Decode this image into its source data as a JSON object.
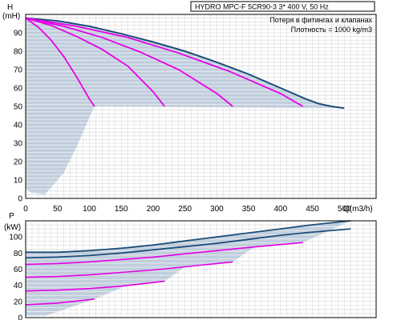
{
  "chart_data": [
    {
      "type": "line",
      "title": "HYDRO MPC-F 5CR90-3   3* 400 V, 50 Hz",
      "notes": [
        "Потеря в фитингах и клапанах",
        "Плотность = 1000 kg/m3"
      ],
      "ylabel": "H",
      "yunit": "(mH)",
      "xlabel": "Q(m3/h)",
      "xlim": [
        0,
        550
      ],
      "ylim": [
        0,
        100
      ],
      "xticks": [
        0,
        50,
        100,
        150,
        200,
        250,
        300,
        350,
        400,
        450,
        500
      ],
      "yticks": [
        0,
        10,
        20,
        30,
        40,
        50,
        60,
        70,
        80,
        90
      ],
      "grid": true,
      "colors": {
        "max": "#1f4e79",
        "pump": "#e600e6",
        "area": "#b8c8d8"
      },
      "series": [
        {
          "x": [
            0,
            50,
            100,
            150,
            200,
            250,
            300,
            350,
            400,
            440,
            460,
            480,
            500
          ],
          "y": [
            98,
            96.5,
            93.5,
            89.5,
            85,
            80,
            74,
            67.5,
            60,
            54,
            51.5,
            50,
            49
          ]
        },
        {
          "x": [
            0,
            20,
            40,
            60,
            80,
            100,
            108
          ],
          "y": [
            98,
            93,
            86,
            77,
            66,
            54,
            50
          ]
        },
        {
          "x": [
            0,
            40,
            80,
            120,
            160,
            200,
            218
          ],
          "y": [
            98,
            94,
            88,
            81,
            72,
            58,
            50
          ]
        },
        {
          "x": [
            0,
            60,
            120,
            180,
            240,
            300,
            325
          ],
          "y": [
            98,
            93.5,
            87.5,
            79.5,
            70,
            57,
            50
          ]
        },
        {
          "x": [
            0,
            80,
            160,
            240,
            320,
            400,
            435
          ],
          "y": [
            98,
            93.5,
            87.5,
            79,
            69,
            57,
            50
          ]
        }
      ]
    },
    {
      "type": "line",
      "ylabel": "P",
      "yunit": "(kW)",
      "xlim": [
        0,
        550
      ],
      "ylim": [
        0,
        120
      ],
      "yticks": [
        0,
        20,
        40,
        60,
        80,
        100
      ],
      "grid": true,
      "series": [
        {
          "x": [
            0,
            50,
            100,
            150,
            200,
            250,
            300,
            350,
            400,
            450,
            510
          ],
          "y": [
            81,
            81,
            83,
            86,
            90,
            95,
            100,
            105,
            110,
            115,
            120
          ]
        },
        {
          "x": [
            0,
            50,
            100,
            150,
            200,
            250,
            300,
            350,
            400,
            450,
            510
          ],
          "y": [
            74,
            75,
            77,
            80,
            84,
            88,
            92,
            97,
            102,
            106,
            110
          ]
        },
        {
          "x": [
            0,
            50,
            100,
            150,
            200,
            250,
            300,
            350,
            435
          ],
          "y": [
            66,
            67,
            69,
            72,
            75,
            79,
            83,
            87,
            93
          ]
        },
        {
          "x": [
            0,
            50,
            100,
            150,
            200,
            250,
            325
          ],
          "y": [
            50,
            51,
            53,
            56,
            59,
            63,
            69
          ]
        },
        {
          "x": [
            0,
            50,
            100,
            150,
            218
          ],
          "y": [
            33,
            34,
            36,
            39,
            45
          ]
        },
        {
          "x": [
            0,
            50,
            108
          ],
          "y": [
            16,
            18,
            23
          ]
        }
      ]
    }
  ]
}
